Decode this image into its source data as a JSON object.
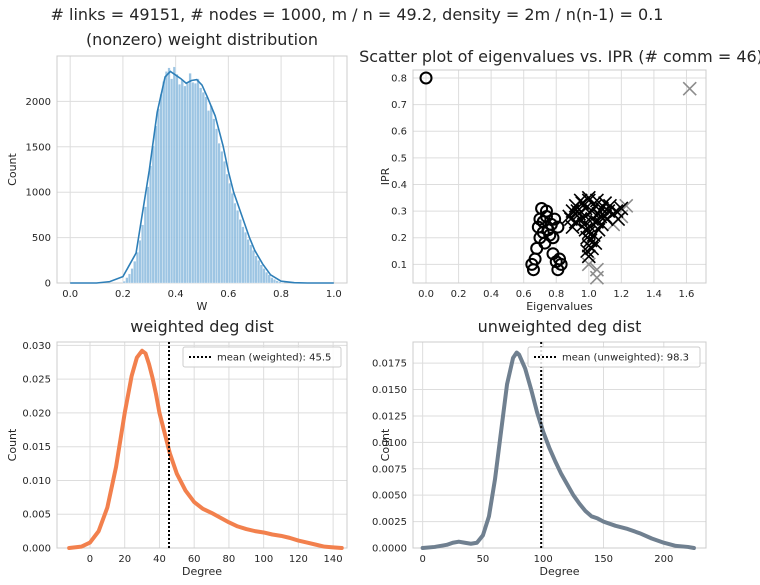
{
  "suptitle": "# links = 49151,  # nodes = 1000,  m / n = 49.2,  density = 2m / n(n-1) = 0.1",
  "chart_data": [
    {
      "type": "bar",
      "title": "(nonzero) weight distribution",
      "xlabel": "W",
      "ylabel": "Count",
      "xlim": [
        -0.05,
        1.05
      ],
      "ylim": [
        0,
        2500
      ],
      "xticks": [
        "0.0",
        "0.2",
        "0.4",
        "0.6",
        "0.8",
        "1.0"
      ],
      "yticks": [
        "0",
        "500",
        "1000",
        "1500",
        "2000"
      ],
      "grid": true,
      "bar_color": "#92bfe0",
      "kde_color": "#2e7fb8",
      "x": [
        0.2,
        0.21,
        0.22,
        0.23,
        0.24,
        0.25,
        0.26,
        0.27,
        0.28,
        0.29,
        0.3,
        0.31,
        0.32,
        0.33,
        0.34,
        0.35,
        0.36,
        0.37,
        0.38,
        0.39,
        0.4,
        0.41,
        0.42,
        0.43,
        0.44,
        0.45,
        0.46,
        0.47,
        0.48,
        0.49,
        0.5,
        0.51,
        0.52,
        0.53,
        0.54,
        0.55,
        0.56,
        0.57,
        0.58,
        0.59,
        0.6,
        0.61,
        0.62,
        0.63,
        0.64,
        0.65,
        0.66,
        0.67,
        0.68,
        0.69,
        0.7,
        0.71,
        0.72,
        0.73,
        0.74,
        0.75,
        0.76,
        0.77,
        0.78,
        0.79,
        0.8
      ],
      "values": [
        20,
        60,
        100,
        160,
        240,
        340,
        470,
        640,
        840,
        1060,
        1290,
        1510,
        1730,
        1920,
        2080,
        2220,
        2330,
        2370,
        2250,
        2380,
        2300,
        2190,
        2240,
        2170,
        2200,
        2310,
        2210,
        2200,
        2250,
        2150,
        2100,
        2050,
        1900,
        1950,
        1810,
        1700,
        1540,
        1450,
        1340,
        1200,
        1100,
        990,
        880,
        800,
        700,
        620,
        560,
        480,
        420,
        360,
        300,
        250,
        200,
        160,
        120,
        90,
        60,
        40,
        25,
        15,
        5
      ],
      "kde_x": [
        0.0,
        0.1,
        0.15,
        0.2,
        0.25,
        0.3,
        0.33,
        0.36,
        0.38,
        0.4,
        0.42,
        0.44,
        0.46,
        0.48,
        0.5,
        0.52,
        0.55,
        0.58,
        0.6,
        0.62,
        0.65,
        0.68,
        0.7,
        0.73,
        0.76,
        0.8,
        0.85,
        0.9,
        1.0
      ],
      "kde_y": [
        0,
        0,
        15,
        70,
        330,
        1240,
        1880,
        2270,
        2330,
        2290,
        2250,
        2200,
        2230,
        2240,
        2180,
        2050,
        1840,
        1510,
        1230,
        1000,
        750,
        500,
        360,
        210,
        90,
        20,
        3,
        0,
        0
      ]
    },
    {
      "type": "scatter",
      "title": "Scatter plot of eigenvalues vs. IPR  (# comm = 46)",
      "xlabel": "Eigenvalues",
      "ylabel": "IPR",
      "xlim": [
        -0.08,
        1.72
      ],
      "ylim": [
        0.03,
        0.83
      ],
      "xticks": [
        "0.0",
        "0.2",
        "0.4",
        "0.6",
        "0.8",
        "1.0",
        "1.2",
        "1.4",
        "1.6"
      ],
      "yticks": [
        "0.1",
        "0.2",
        "0.3",
        "0.4",
        "0.5",
        "0.6",
        "0.7",
        "0.8"
      ],
      "grid": true,
      "circles": [
        [
          0.0,
          0.8
        ],
        [
          0.65,
          0.1
        ],
        [
          0.66,
          0.08
        ],
        [
          0.67,
          0.12
        ],
        [
          0.68,
          0.16
        ],
        [
          0.69,
          0.24
        ],
        [
          0.7,
          0.27
        ],
        [
          0.7,
          0.2
        ],
        [
          0.71,
          0.31
        ],
        [
          0.72,
          0.22
        ],
        [
          0.72,
          0.26
        ],
        [
          0.73,
          0.18
        ],
        [
          0.74,
          0.28
        ],
        [
          0.74,
          0.3
        ],
        [
          0.75,
          0.23
        ],
        [
          0.76,
          0.21
        ],
        [
          0.77,
          0.25
        ],
        [
          0.78,
          0.14
        ],
        [
          0.78,
          0.2
        ],
        [
          0.79,
          0.27
        ],
        [
          0.8,
          0.11
        ],
        [
          0.81,
          0.08
        ],
        [
          0.81,
          0.24
        ],
        [
          0.82,
          0.12
        ],
        [
          0.83,
          0.1
        ]
      ],
      "crosses_gray": [
        [
          1.62,
          0.76
        ],
        [
          1.05,
          0.05
        ],
        [
          1.05,
          0.08
        ],
        [
          1.15,
          0.25
        ],
        [
          1.2,
          0.28
        ],
        [
          1.23,
          0.32
        ],
        [
          1.0,
          0.1
        ]
      ],
      "crosses_black": [
        [
          0.88,
          0.28
        ],
        [
          0.9,
          0.3
        ],
        [
          0.92,
          0.32
        ],
        [
          0.94,
          0.29
        ],
        [
          0.96,
          0.33
        ],
        [
          0.98,
          0.31
        ],
        [
          1.0,
          0.34
        ],
        [
          1.02,
          0.3
        ],
        [
          1.04,
          0.32
        ],
        [
          1.06,
          0.29
        ],
        [
          1.08,
          0.31
        ],
        [
          1.1,
          0.28
        ],
        [
          1.12,
          0.3
        ],
        [
          1.15,
          0.29
        ],
        [
          1.18,
          0.27
        ],
        [
          1.2,
          0.31
        ],
        [
          0.92,
          0.26
        ],
        [
          0.95,
          0.27
        ],
        [
          0.98,
          0.28
        ],
        [
          1.02,
          0.27
        ],
        [
          1.05,
          0.26
        ],
        [
          1.08,
          0.25
        ],
        [
          1.11,
          0.27
        ],
        [
          0.9,
          0.24
        ],
        [
          0.97,
          0.25
        ],
        [
          1.01,
          0.24
        ],
        [
          1.06,
          0.23
        ],
        [
          1.0,
          0.22
        ],
        [
          0.99,
          0.2
        ],
        [
          1.01,
          0.19
        ],
        [
          1.0,
          0.17
        ],
        [
          0.99,
          0.15
        ],
        [
          1.02,
          0.16
        ],
        [
          1.0,
          0.13
        ],
        [
          1.03,
          0.21
        ],
        [
          0.98,
          0.23
        ],
        [
          1.04,
          0.18
        ],
        [
          0.95,
          0.34
        ],
        [
          1.0,
          0.35
        ],
        [
          1.05,
          0.34
        ],
        [
          1.1,
          0.33
        ],
        [
          0.93,
          0.3
        ],
        [
          1.13,
          0.32
        ],
        [
          1.17,
          0.3
        ],
        [
          0.89,
          0.27
        ],
        [
          1.07,
          0.28
        ]
      ]
    },
    {
      "type": "line",
      "title": "weighted deg dist",
      "xlabel": "Degree",
      "ylabel": "Count",
      "xlim": [
        -19,
        148
      ],
      "ylim": [
        0,
        0.0305
      ],
      "xticks": [
        "0",
        "20",
        "40",
        "60",
        "80",
        "100",
        "120",
        "140"
      ],
      "yticks": [
        "0.000",
        "0.005",
        "0.010",
        "0.015",
        "0.020",
        "0.025",
        "0.030"
      ],
      "grid": true,
      "color": "#f2804d",
      "mean_line": 45.5,
      "legend": "mean (weighted):  45.5",
      "legend_position": "top-right",
      "x": [
        -12,
        -5,
        0,
        5,
        10,
        15,
        20,
        24,
        27,
        30,
        32,
        34,
        36,
        38,
        40,
        43,
        46,
        50,
        55,
        60,
        65,
        70,
        75,
        80,
        85,
        90,
        95,
        100,
        105,
        110,
        115,
        120,
        125,
        130,
        135,
        140,
        145
      ],
      "y": [
        0.0,
        0.0002,
        0.0008,
        0.0025,
        0.006,
        0.012,
        0.02,
        0.0255,
        0.0282,
        0.0292,
        0.0288,
        0.0272,
        0.0252,
        0.0228,
        0.02,
        0.017,
        0.014,
        0.011,
        0.0085,
        0.0068,
        0.0058,
        0.0052,
        0.0045,
        0.0038,
        0.0032,
        0.0028,
        0.0025,
        0.0023,
        0.002,
        0.0018,
        0.0015,
        0.0011,
        0.0008,
        0.0005,
        0.0002,
        0.0001,
        0.0
      ]
    },
    {
      "type": "line",
      "title": "unweighted deg dist",
      "xlabel": "Degree",
      "ylabel": "Count",
      "xlim": [
        -8,
        235
      ],
      "ylim": [
        0,
        0.0195
      ],
      "xticks": [
        "0",
        "50",
        "100",
        "150",
        "200"
      ],
      "yticks": [
        "0.0000",
        "0.0025",
        "0.0050",
        "0.0075",
        "0.0100",
        "0.0125",
        "0.0150",
        "0.0175"
      ],
      "grid": true,
      "color": "#708090",
      "mean_line": 98.3,
      "legend": "mean (unweighted):  98.3",
      "legend_position": "top-right",
      "x": [
        0,
        10,
        20,
        25,
        30,
        35,
        40,
        45,
        50,
        55,
        60,
        65,
        70,
        75,
        78,
        80,
        85,
        90,
        95,
        100,
        105,
        110,
        115,
        120,
        125,
        130,
        135,
        140,
        145,
        150,
        160,
        170,
        180,
        190,
        200,
        210,
        220,
        225
      ],
      "y": [
        0.0,
        0.0001,
        0.0003,
        0.0005,
        0.0006,
        0.0005,
        0.0004,
        0.0005,
        0.0012,
        0.003,
        0.0065,
        0.011,
        0.0155,
        0.018,
        0.0185,
        0.0183,
        0.017,
        0.015,
        0.0128,
        0.011,
        0.0095,
        0.0082,
        0.007,
        0.006,
        0.005,
        0.0042,
        0.0035,
        0.003,
        0.0028,
        0.0025,
        0.0021,
        0.0018,
        0.0014,
        0.0009,
        0.0005,
        0.0002,
        0.0001,
        0.0
      ]
    }
  ]
}
